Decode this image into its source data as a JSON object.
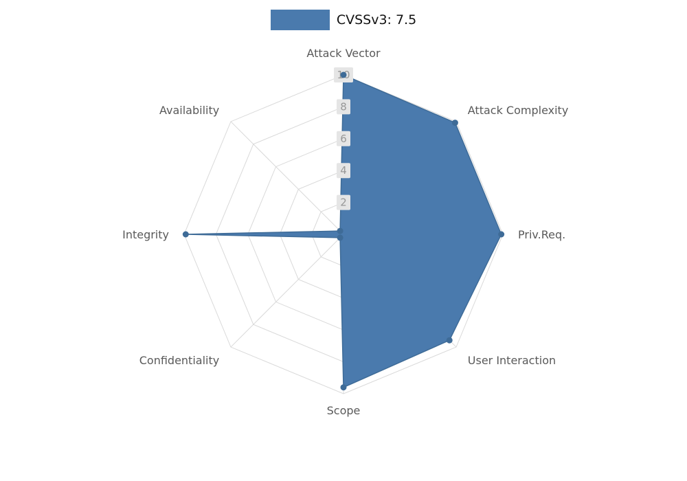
{
  "legend": {
    "label": "CVSSv3: 7.5",
    "swatch_color": "#4a7aad"
  },
  "chart_data": {
    "type": "radar",
    "title": "CVSSv3: 7.5",
    "axes": [
      "Attack Vector",
      "Attack Complexity",
      "Priv.Req.",
      "User Interaction",
      "Scope",
      "Confidentiality",
      "Integrity",
      "Availability"
    ],
    "series": [
      {
        "name": "CVSSv3: 7.5",
        "values": [
          10,
          9.9,
          9.9,
          9.4,
          9.6,
          0.3,
          9.9,
          0.3
        ]
      }
    ],
    "ticks": [
      2,
      4,
      6,
      8,
      10
    ],
    "max": 10,
    "grid": true,
    "legend_position": "top-center",
    "colors": {
      "fill": "#4a7aad",
      "stroke": "#3e6b97",
      "dot": "#3e6b97",
      "grid": "#d9d9d9",
      "axis_label": "#595959",
      "tick_label": "#979797",
      "tick_bg": "#e5e5e5"
    }
  }
}
